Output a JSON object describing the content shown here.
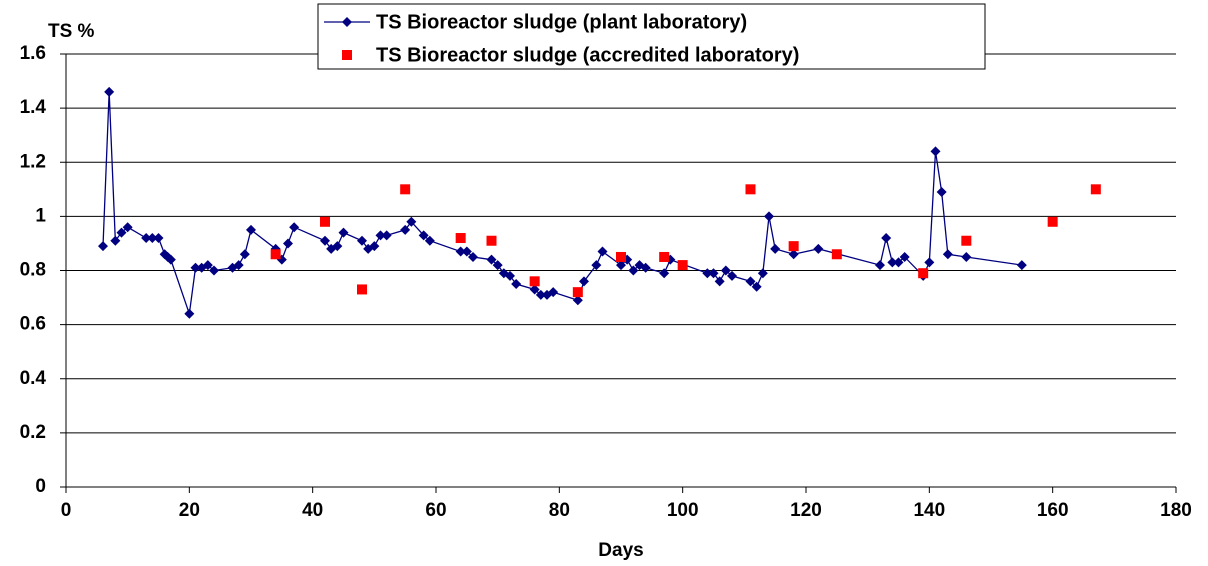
{
  "chart_data": {
    "type": "line",
    "y_label": "TS %",
    "x_label": "Days",
    "xlim": [
      0,
      180
    ],
    "xticks": [
      0,
      20,
      40,
      60,
      80,
      100,
      120,
      140,
      160,
      180
    ],
    "ylim": [
      0,
      1.6
    ],
    "yticks": [
      0,
      0.2,
      0.4,
      0.6,
      0.8,
      1,
      1.2,
      1.4,
      1.6
    ],
    "grid": true,
    "legend": "top",
    "series": [
      {
        "name": "TS Bioreactor sludge (plant laboratory)",
        "color": "#000080",
        "mode": "lines+markers",
        "marker": "diamond",
        "x": [
          6,
          7,
          8,
          9,
          10,
          13,
          14,
          15,
          16,
          16.5,
          17,
          20,
          21,
          22,
          23,
          24,
          27,
          28,
          29,
          30,
          34,
          35,
          36,
          37,
          42,
          43,
          44,
          45,
          48,
          49,
          50,
          51,
          52,
          55,
          56,
          58,
          59,
          64,
          65,
          66,
          69,
          70,
          71,
          72,
          73,
          76,
          77,
          78,
          79,
          83,
          84,
          86,
          87,
          90,
          91,
          92,
          93,
          94,
          97,
          98,
          104,
          105,
          106,
          107,
          108,
          111,
          112,
          113,
          114,
          115,
          118,
          122,
          132,
          133,
          134,
          135,
          136,
          139,
          140,
          141,
          142,
          143,
          146,
          155
        ],
        "values": [
          0.89,
          1.46,
          0.91,
          0.94,
          0.96,
          0.92,
          0.92,
          0.92,
          0.86,
          0.85,
          0.84,
          0.64,
          0.81,
          0.81,
          0.82,
          0.8,
          0.81,
          0.82,
          0.86,
          0.95,
          0.88,
          0.84,
          0.9,
          0.96,
          0.91,
          0.88,
          0.89,
          0.94,
          0.91,
          0.88,
          0.89,
          0.93,
          0.93,
          0.95,
          0.98,
          0.93,
          0.91,
          0.87,
          0.87,
          0.85,
          0.84,
          0.82,
          0.79,
          0.78,
          0.75,
          0.73,
          0.71,
          0.71,
          0.72,
          0.69,
          0.76,
          0.82,
          0.87,
          0.82,
          0.84,
          0.8,
          0.82,
          0.81,
          0.79,
          0.84,
          0.79,
          0.79,
          0.76,
          0.8,
          0.78,
          0.76,
          0.74,
          0.79,
          1.0,
          0.88,
          0.86,
          0.88,
          0.82,
          0.92,
          0.83,
          0.83,
          0.85,
          0.78,
          0.83,
          1.24,
          1.09,
          0.86,
          0.85,
          0.82
        ]
      },
      {
        "name": "TS Bioreactor sludge (accredited laboratory)",
        "color": "#ff0000",
        "mode": "markers",
        "marker": "square",
        "x": [
          34,
          42,
          48,
          55,
          64,
          69,
          76,
          83,
          90,
          97,
          100,
          111,
          118,
          125,
          139,
          146,
          160,
          167
        ],
        "values": [
          0.86,
          0.98,
          0.73,
          1.1,
          0.92,
          0.91,
          0.76,
          0.72,
          0.85,
          0.85,
          0.82,
          1.1,
          0.89,
          0.86,
          0.79,
          0.91,
          0.98,
          1.1
        ]
      }
    ]
  }
}
